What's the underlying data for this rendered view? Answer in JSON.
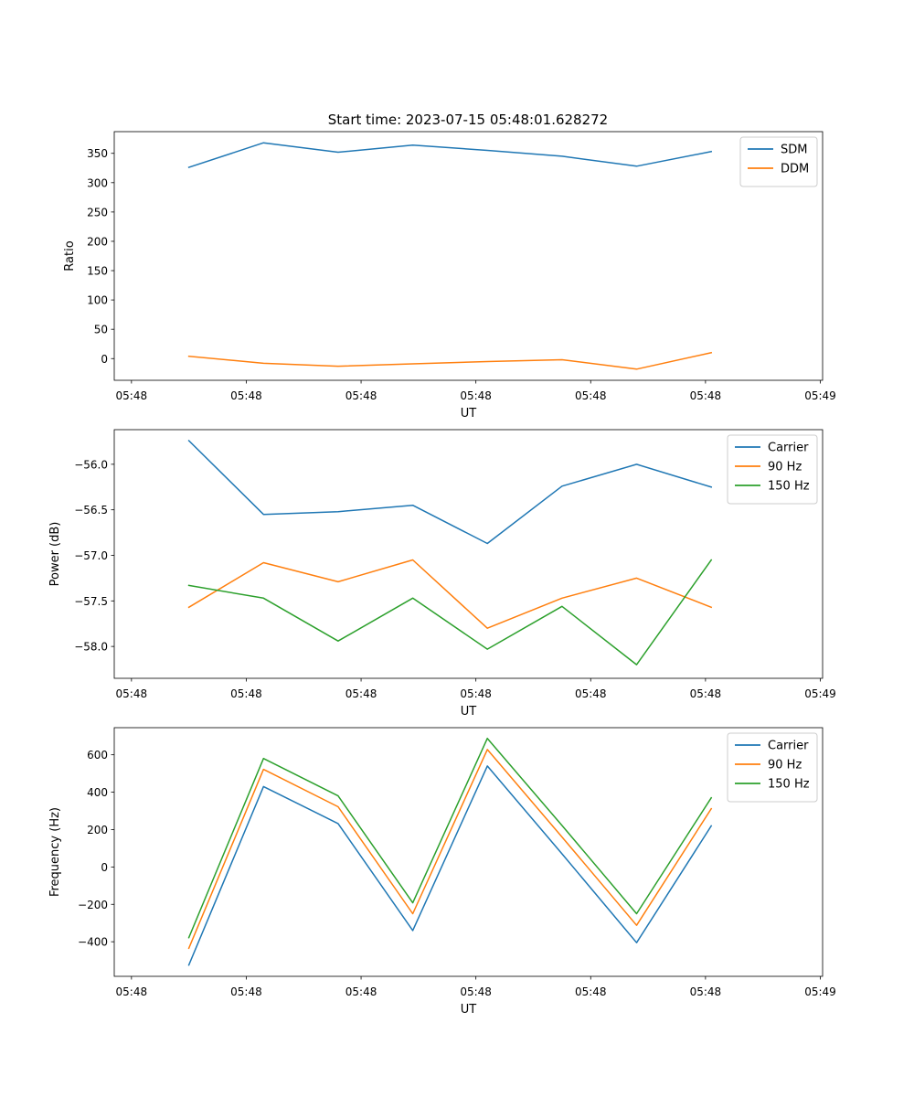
{
  "figure": {
    "title": "Start time: 2023-07-15 05:48:01.628272"
  },
  "colors": {
    "blue": "#1f77b4",
    "orange": "#ff7f0e",
    "green": "#2ca02c"
  },
  "chart_data": [
    {
      "type": "line",
      "title": "Start time: 2023-07-15 05:48:01.628272",
      "xlabel": "UT",
      "ylabel": "Ratio",
      "x_ticks": [
        0,
        1,
        2,
        3,
        4,
        5,
        6
      ],
      "x_tick_labels": [
        "05:48",
        "05:48",
        "05:48",
        "05:48",
        "05:48",
        "05:48",
        "05:49"
      ],
      "xlim": [
        -0.15,
        6.02
      ],
      "x": [
        0.5,
        1.15,
        1.8,
        2.45,
        3.1,
        3.75,
        4.4,
        5.05
      ],
      "ylim": [
        -37,
        387
      ],
      "y_ticks": [
        0,
        50,
        100,
        150,
        200,
        250,
        300,
        350
      ],
      "legend": "top-right",
      "series": [
        {
          "name": "SDM",
          "color": "#1f77b4",
          "values": [
            326,
            368,
            352,
            364,
            355,
            345,
            328,
            353
          ]
        },
        {
          "name": "DDM",
          "color": "#ff7f0e",
          "values": [
            4,
            -8,
            -13,
            -9,
            -5,
            -2,
            -18,
            10
          ]
        }
      ]
    },
    {
      "type": "line",
      "xlabel": "UT",
      "ylabel": "Power (dB)",
      "x_ticks": [
        0,
        1,
        2,
        3,
        4,
        5,
        6
      ],
      "x_tick_labels": [
        "05:48",
        "05:48",
        "05:48",
        "05:48",
        "05:48",
        "05:48",
        "05:49"
      ],
      "xlim": [
        -0.15,
        6.02
      ],
      "x": [
        0.5,
        1.15,
        1.8,
        2.45,
        3.1,
        3.75,
        4.4,
        5.05
      ],
      "ylim": [
        -58.35,
        -55.62
      ],
      "y_ticks": [
        -58.0,
        -57.5,
        -57.0,
        -56.5,
        -56.0
      ],
      "y_tick_labels": [
        "−58.0",
        "−57.5",
        "−57.0",
        "−56.5",
        "−56.0"
      ],
      "legend": "top-right",
      "series": [
        {
          "name": "Carrier",
          "color": "#1f77b4",
          "values": [
            -55.74,
            -56.55,
            -56.52,
            -56.45,
            -56.87,
            -56.24,
            -56.0,
            -56.25
          ]
        },
        {
          "name": "90 Hz",
          "color": "#ff7f0e",
          "values": [
            -57.57,
            -57.08,
            -57.29,
            -57.05,
            -57.8,
            -57.47,
            -57.25,
            -57.57
          ]
        },
        {
          "name": "150 Hz",
          "color": "#2ca02c",
          "values": [
            -57.33,
            -57.47,
            -57.94,
            -57.47,
            -58.03,
            -57.56,
            -58.2,
            -57.05
          ]
        }
      ]
    },
    {
      "type": "line",
      "xlabel": "UT",
      "ylabel": "Frequency (Hz)",
      "x_ticks": [
        0,
        1,
        2,
        3,
        4,
        5,
        6
      ],
      "x_tick_labels": [
        "05:48",
        "05:48",
        "05:48",
        "05:48",
        "05:48",
        "05:48",
        "05:49"
      ],
      "xlim": [
        -0.15,
        6.02
      ],
      "x": [
        0.5,
        1.15,
        1.8,
        2.45,
        3.1,
        3.75,
        4.4,
        5.05
      ],
      "ylim": [
        -585,
        745
      ],
      "y_ticks": [
        -400,
        -200,
        0,
        200,
        400,
        600
      ],
      "y_tick_labels": [
        "−400",
        "−200",
        "0",
        "200",
        "400",
        "600"
      ],
      "legend": "top-right",
      "series": [
        {
          "name": "Carrier",
          "color": "#1f77b4",
          "values": [
            -525,
            430,
            232,
            -340,
            540,
            70,
            -405,
            220
          ]
        },
        {
          "name": "90 Hz",
          "color": "#ff7f0e",
          "values": [
            -435,
            522,
            322,
            -250,
            628,
            160,
            -312,
            312
          ]
        },
        {
          "name": "150 Hz",
          "color": "#2ca02c",
          "values": [
            -378,
            580,
            380,
            -192,
            688,
            222,
            -250,
            370
          ]
        }
      ]
    }
  ]
}
